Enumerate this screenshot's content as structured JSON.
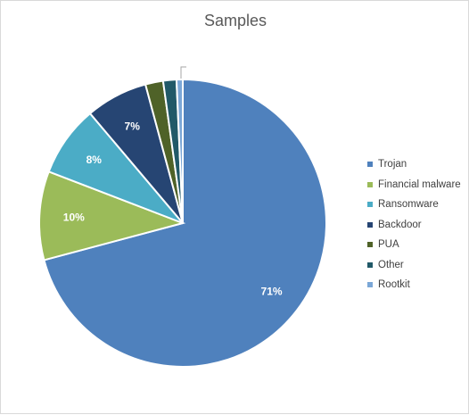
{
  "chart_data": {
    "type": "pie",
    "title": "Samples",
    "categories": [
      "Trojan",
      "Financial malware",
      "Ransomware",
      "Backdoor",
      "PUA",
      "Other",
      "Rootkit"
    ],
    "values": [
      71,
      10,
      8,
      7,
      2,
      1.5,
      0.7
    ],
    "data_labels": [
      "71%",
      "10%",
      "8%",
      "7%",
      "",
      "",
      ""
    ],
    "colors": [
      "#4f81bd",
      "#9bbb59",
      "#4bacc6",
      "#264573",
      "#4f6228",
      "#215968",
      "#7ba7d7"
    ],
    "legend_position": "right"
  }
}
